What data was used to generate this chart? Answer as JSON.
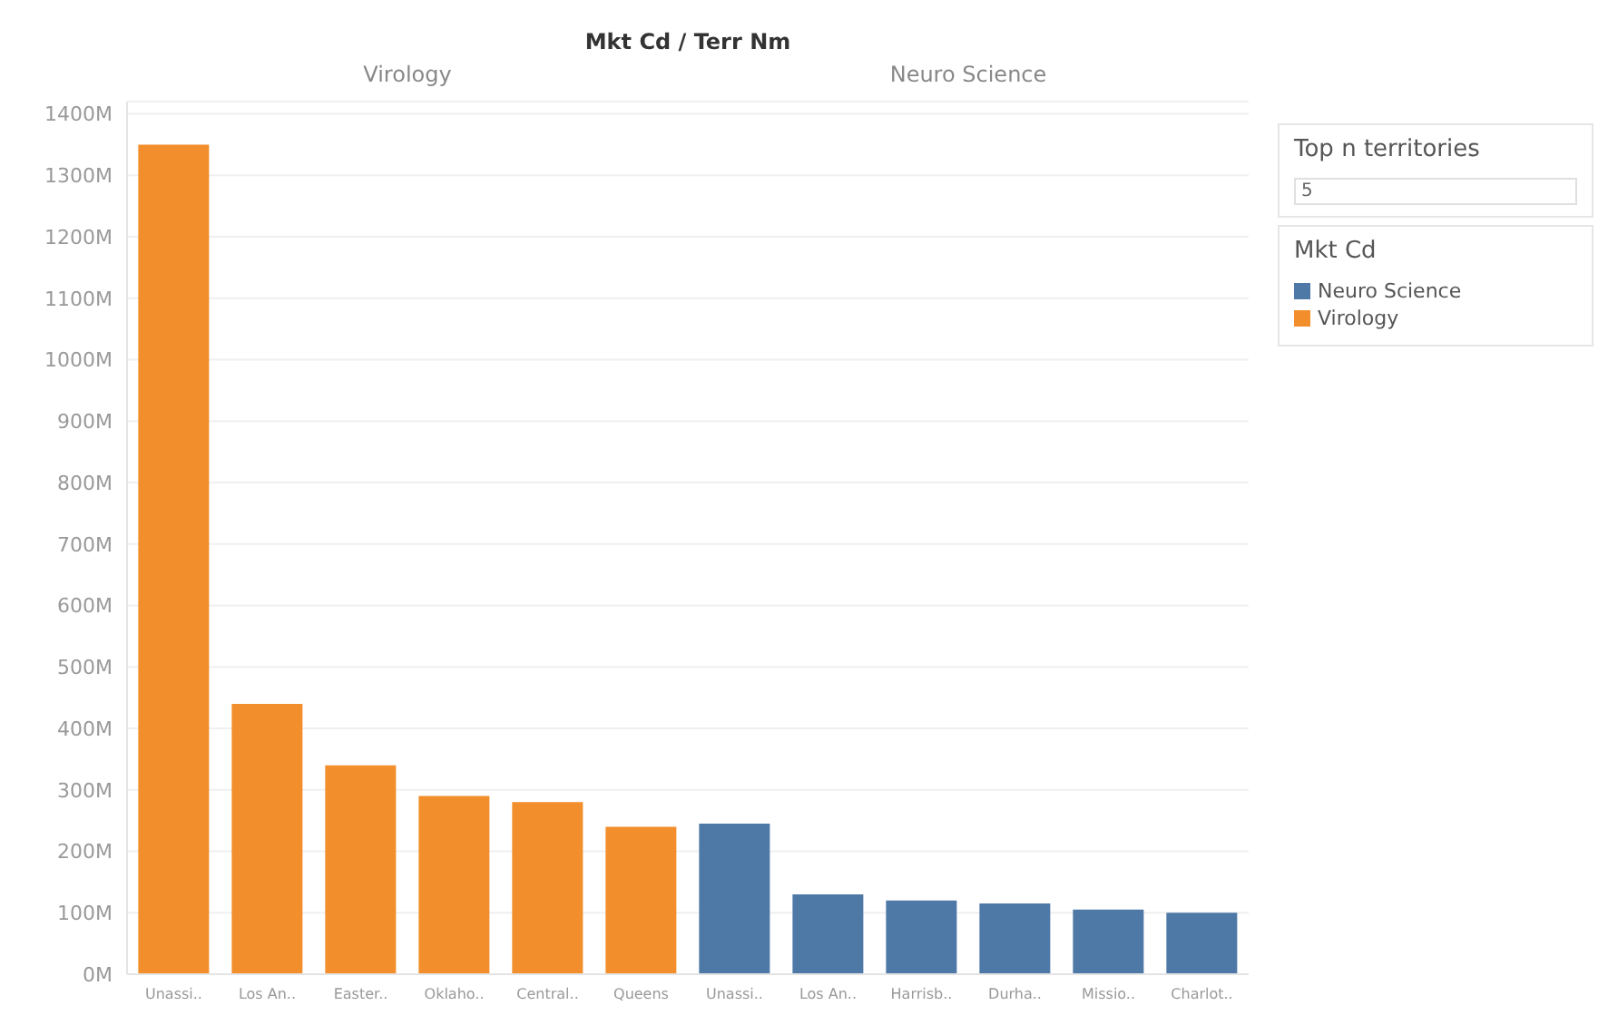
{
  "chart_data": {
    "type": "bar",
    "title": "Mkt Cd / Terr Nm",
    "legend_title": "Mkt Cd",
    "categories": [
      "Unassi..",
      "Los An..",
      "Easter..",
      "Oklaho..",
      "Central..",
      "Queens",
      "Unassi..",
      "Los An..",
      "Harrisb..",
      "Durha..",
      "Missio..",
      "Charlot.."
    ],
    "series": [
      {
        "name": "Neuro Science",
        "color": "#4e79a7",
        "values": [
          null,
          null,
          null,
          null,
          null,
          null,
          245,
          130,
          120,
          115,
          105,
          100
        ]
      },
      {
        "name": "Virology",
        "color": "#f28e2b",
        "values": [
          1350,
          440,
          340,
          290,
          280,
          240,
          null,
          null,
          null,
          null,
          null,
          null
        ]
      }
    ],
    "ylim": [
      0,
      1420
    ],
    "yticks": [
      {
        "value": 0,
        "label": "0M"
      },
      {
        "value": 100,
        "label": "100M"
      },
      {
        "value": 200,
        "label": "200M"
      },
      {
        "value": 300,
        "label": "300M"
      },
      {
        "value": 400,
        "label": "400M"
      },
      {
        "value": 500,
        "label": "500M"
      },
      {
        "value": 600,
        "label": "600M"
      },
      {
        "value": 700,
        "label": "700M"
      },
      {
        "value": 800,
        "label": "800M"
      },
      {
        "value": 900,
        "label": "900M"
      },
      {
        "value": 1000,
        "label": "1000M"
      },
      {
        "value": 1100,
        "label": "1100M"
      },
      {
        "value": 1200,
        "label": "1200M"
      },
      {
        "value": 1300,
        "label": "1300M"
      },
      {
        "value": 1400,
        "label": "1400M"
      }
    ],
    "grid": "y",
    "legend": "right",
    "annotations": [
      "Top n territories",
      "5"
    ]
  }
}
